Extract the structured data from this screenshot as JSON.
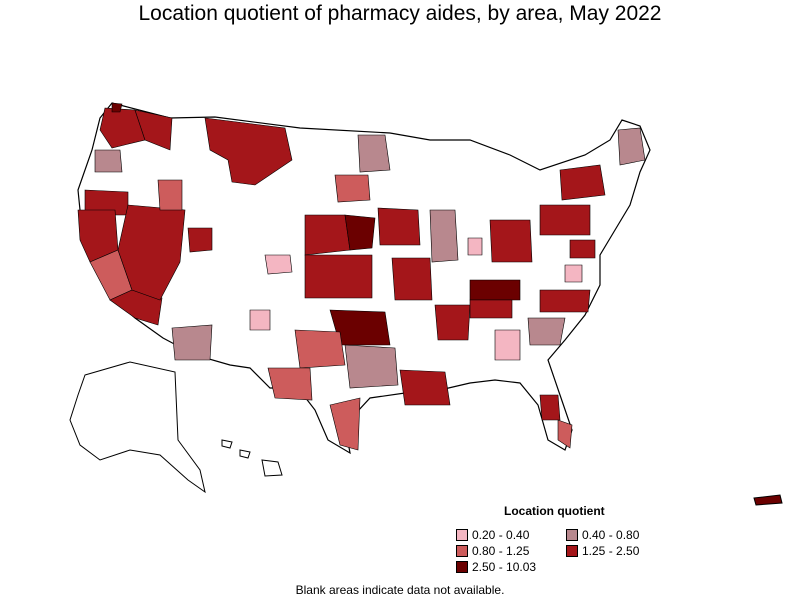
{
  "title": "Location quotient of pharmacy aides, by area, May 2022",
  "legend": {
    "title": "Location quotient",
    "items": [
      {
        "label": "0.20 - 0.40",
        "color": "#f4b6c2"
      },
      {
        "label": "0.40 - 0.80",
        "color": "#b8888e"
      },
      {
        "label": "0.80 - 1.25",
        "color": "#cd5c5c"
      },
      {
        "label": "1.25 - 2.50",
        "color": "#a4161a"
      },
      {
        "label": "2.50 - 10.03",
        "color": "#6b0000"
      }
    ]
  },
  "note": "Blank areas indicate data not available.",
  "colors": {
    "no_data": "#ffffff",
    "border": "#000000"
  }
}
